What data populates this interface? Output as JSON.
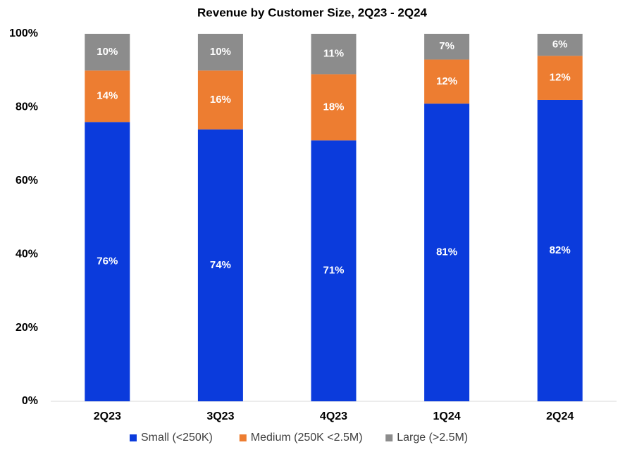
{
  "chart_data": {
    "type": "stacked_bar",
    "title": "Revenue by Customer Size, 2Q23 - 2Q24",
    "categories": [
      "2Q23",
      "3Q23",
      "4Q23",
      "1Q24",
      "2Q24"
    ],
    "series": [
      {
        "name": "Small (<250K)",
        "color": "#0b3bdc",
        "values": [
          76,
          74,
          71,
          81,
          82
        ],
        "value_labels": [
          "76%",
          "74%",
          "71%",
          "81%",
          "82%"
        ]
      },
      {
        "name": "Medium (250K <2.5M)",
        "color": "#ed7d31",
        "values": [
          14,
          16,
          18,
          12,
          12
        ],
        "value_labels": [
          "14%",
          "16%",
          "18%",
          "12%",
          "12%"
        ]
      },
      {
        "name": "Large (>2.5M)",
        "color": "#8c8c8c",
        "values": [
          10,
          10,
          11,
          7,
          6
        ],
        "value_labels": [
          "10%",
          "10%",
          "11%",
          "7%",
          "6%"
        ]
      }
    ],
    "ylim": [
      0,
      100
    ],
    "yticks": [
      {
        "value": 0,
        "label": "0%"
      },
      {
        "value": 20,
        "label": "20%"
      },
      {
        "value": 40,
        "label": "40%"
      },
      {
        "value": 60,
        "label": "60%"
      },
      {
        "value": 80,
        "label": "80%"
      },
      {
        "value": 100,
        "label": "100%"
      }
    ],
    "legend": "bottom"
  }
}
